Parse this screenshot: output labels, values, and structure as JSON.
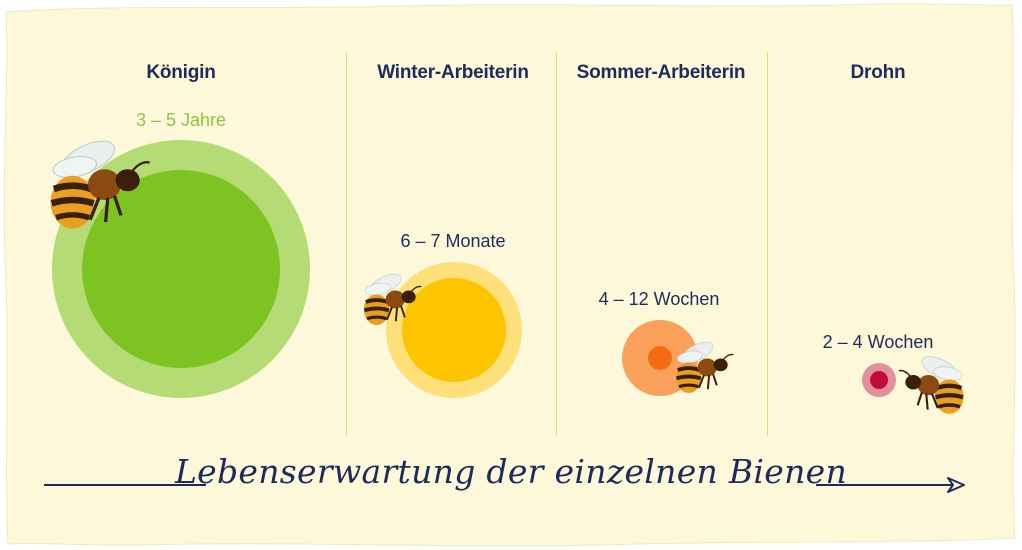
{
  "columns": [
    {
      "title": "Königin",
      "duration": "3 – 5 Jahre",
      "color_outer": "#b5dc74",
      "color_inner": "#7dc423"
    },
    {
      "title": "Winter-Arbeiterin",
      "duration": "6 – 7 Monate",
      "color_outer": "#fde07a",
      "color_inner": "#fcc500"
    },
    {
      "title": "Sommer-Arbeiterin",
      "duration": "4 – 12 Wochen",
      "color_outer": "#f9a15b",
      "color_inner": "#f36c12"
    },
    {
      "title": "Drohn",
      "duration": "2 – 4 Wochen",
      "color_outer": "#e0919c",
      "color_inner": "#c20d3a"
    }
  ],
  "caption": "Lebenserwartung der einzelnen Bienen",
  "colors": {
    "background": "#fdf8d9",
    "text": "#1f2a5c",
    "accent_green": "#8cc63f",
    "divider": "#e6d97a"
  },
  "icons": [
    "bee-icon",
    "arrow-right-icon"
  ]
}
